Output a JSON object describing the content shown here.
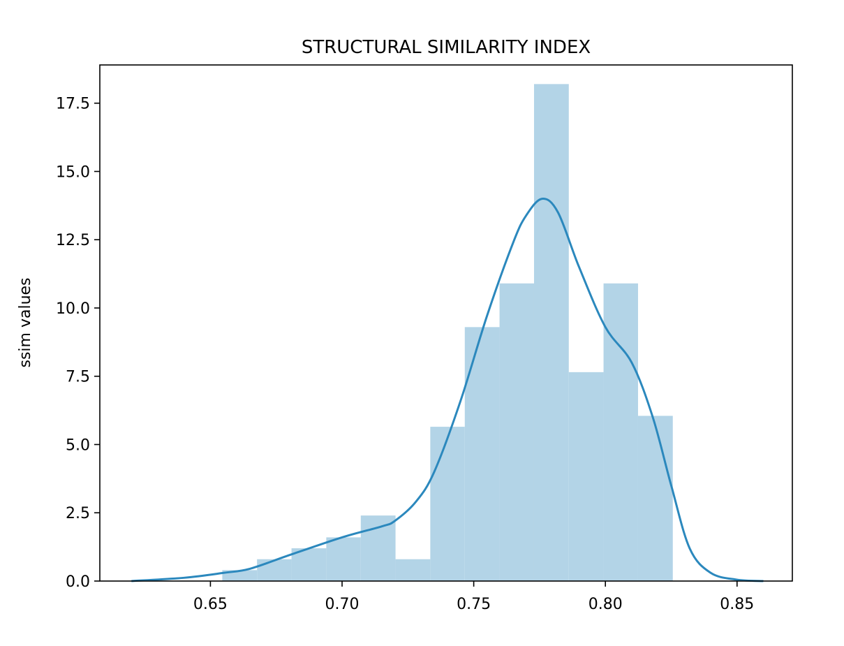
{
  "chart_data": {
    "type": "bar",
    "title": "STRUCTURAL SIMILARITY INDEX",
    "xlabel": "",
    "ylabel": "ssim values",
    "xlim": [
      0.608,
      0.871
    ],
    "ylim": [
      0,
      18.9
    ],
    "grid": false,
    "xticks": [
      0.65,
      0.7,
      0.75,
      0.8,
      0.85
    ],
    "xtick_labels": [
      "0.65",
      "0.70",
      "0.75",
      "0.80",
      "0.85"
    ],
    "yticks": [
      0.0,
      2.5,
      5.0,
      7.5,
      10.0,
      12.5,
      15.0,
      17.5
    ],
    "ytick_labels": [
      "0.0",
      "2.5",
      "5.0",
      "7.5",
      "10.0",
      "12.5",
      "15.0",
      "17.5"
    ],
    "histogram": {
      "bin_edges": [
        0.6545,
        0.6677,
        0.6808,
        0.694,
        0.7071,
        0.7203,
        0.7335,
        0.7466,
        0.7598,
        0.7729,
        0.7861,
        0.7993,
        0.8124,
        0.8256
      ],
      "density": [
        0.4,
        0.8,
        1.2,
        1.6,
        2.4,
        0.8,
        5.65,
        9.3,
        10.9,
        18.2,
        7.65,
        10.9,
        6.05
      ],
      "color": "#b3d4e7"
    },
    "kde": {
      "x": [
        0.62,
        0.64,
        0.655,
        0.665,
        0.68,
        0.7,
        0.715,
        0.72,
        0.728,
        0.735,
        0.745,
        0.755,
        0.765,
        0.77,
        0.776,
        0.782,
        0.79,
        0.8,
        0.81,
        0.818,
        0.825,
        0.832,
        0.84,
        0.85,
        0.86
      ],
      "y": [
        0.0,
        0.12,
        0.3,
        0.45,
        0.95,
        1.6,
        2.0,
        2.2,
        2.9,
        4.0,
        6.6,
        9.7,
        12.4,
        13.4,
        14.0,
        13.5,
        11.5,
        9.3,
        8.0,
        6.0,
        3.5,
        1.2,
        0.3,
        0.05,
        0.0
      ],
      "color": "#2b88bd"
    }
  }
}
